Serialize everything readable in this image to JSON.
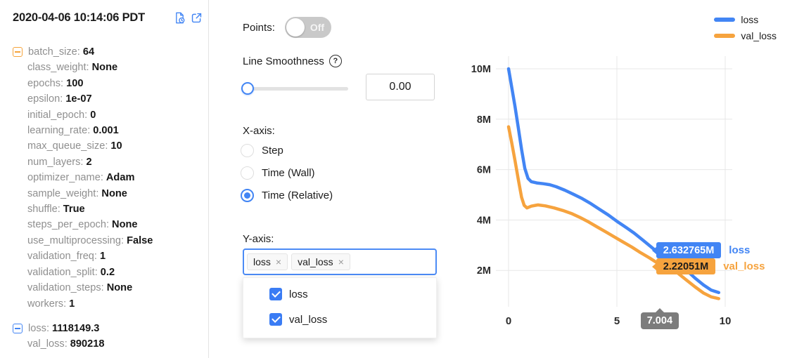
{
  "timestamp": "2020-04-06 10:14:06 PDT",
  "header_icons": [
    "file-history-icon",
    "open-external-icon"
  ],
  "params": {
    "groups": [
      {
        "accent": "#F5A33B",
        "items": [
          {
            "label": "batch_size",
            "value": "64"
          },
          {
            "label": "class_weight",
            "value": "None"
          },
          {
            "label": "epochs",
            "value": "100"
          },
          {
            "label": "epsilon",
            "value": "1e-07"
          },
          {
            "label": "initial_epoch",
            "value": "0"
          },
          {
            "label": "learning_rate",
            "value": "0.001"
          },
          {
            "label": "max_queue_size",
            "value": "10"
          },
          {
            "label": "num_layers",
            "value": "2"
          },
          {
            "label": "optimizer_name",
            "value": "Adam"
          },
          {
            "label": "sample_weight",
            "value": "None"
          },
          {
            "label": "shuffle",
            "value": "True"
          },
          {
            "label": "steps_per_epoch",
            "value": "None"
          },
          {
            "label": "use_multiprocessing",
            "value": "False"
          },
          {
            "label": "validation_freq",
            "value": "1"
          },
          {
            "label": "validation_split",
            "value": "0.2"
          },
          {
            "label": "validation_steps",
            "value": "None"
          },
          {
            "label": "workers",
            "value": "1"
          }
        ]
      },
      {
        "accent": "#4285F4",
        "items": [
          {
            "label": "loss",
            "value": "1118149.3"
          },
          {
            "label": "val_loss",
            "value": "890218"
          }
        ]
      }
    ]
  },
  "controls": {
    "points": {
      "label": "Points:",
      "state": "Off"
    },
    "smoothness": {
      "label": "Line Smoothness",
      "help_glyph": "?",
      "value": "0.00",
      "slider_position": 0
    },
    "xaxis": {
      "label": "X-axis:",
      "options": [
        {
          "label": "Step",
          "selected": false
        },
        {
          "label": "Time (Wall)",
          "selected": false
        },
        {
          "label": "Time (Relative)",
          "selected": true
        }
      ]
    },
    "yaxis": {
      "label": "Y-axis:",
      "tags": [
        "loss",
        "val_loss"
      ],
      "options": [
        {
          "label": "loss",
          "checked": true
        },
        {
          "label": "val_loss",
          "checked": true
        }
      ]
    }
  },
  "chart_data": {
    "type": "line",
    "title": "",
    "xlabel": "",
    "ylabel": "",
    "grid": true,
    "legend_position": "top-right",
    "y_unit": "M",
    "xlim": [
      -0.6,
      10.3
    ],
    "ylim_millions": [
      0.6,
      10.5
    ],
    "x_ticks": [
      {
        "v": 0,
        "label": "0"
      },
      {
        "v": 5,
        "label": "5"
      },
      {
        "v": 10,
        "label": "10"
      }
    ],
    "y_ticks": [
      {
        "v": 2,
        "label": "2M"
      },
      {
        "v": 4,
        "label": "4M"
      },
      {
        "v": 6,
        "label": "6M"
      },
      {
        "v": 8,
        "label": "8M"
      },
      {
        "v": 10,
        "label": "10M"
      }
    ],
    "cursor_x": 7.004,
    "cursor_label": "7.004",
    "series": [
      {
        "name": "loss",
        "color": "#4285F4",
        "cursor_value": 2.632765,
        "cursor_value_label": "2.632765M",
        "value_text_color": "#ffffff",
        "points": [
          [
            0,
            10.0
          ],
          [
            0.15,
            9.25
          ],
          [
            0.3,
            8.5
          ],
          [
            0.45,
            7.65
          ],
          [
            0.6,
            6.8
          ],
          [
            0.75,
            6.05
          ],
          [
            0.9,
            5.65
          ],
          [
            1.05,
            5.52
          ],
          [
            1.3,
            5.47
          ],
          [
            1.6,
            5.44
          ],
          [
            1.9,
            5.4
          ],
          [
            2.2,
            5.32
          ],
          [
            2.6,
            5.18
          ],
          [
            3.0,
            5.02
          ],
          [
            3.4,
            4.85
          ],
          [
            3.8,
            4.65
          ],
          [
            4.2,
            4.42
          ],
          [
            4.6,
            4.2
          ],
          [
            5.0,
            3.95
          ],
          [
            5.4,
            3.72
          ],
          [
            5.8,
            3.48
          ],
          [
            6.2,
            3.2
          ],
          [
            6.6,
            2.92
          ],
          [
            7.004,
            2.632765
          ],
          [
            7.4,
            2.45
          ],
          [
            7.8,
            2.28
          ],
          [
            8.2,
            2.02
          ],
          [
            8.6,
            1.7
          ],
          [
            9.0,
            1.42
          ],
          [
            9.35,
            1.22
          ],
          [
            9.7,
            1.12
          ]
        ]
      },
      {
        "name": "val_loss",
        "color": "#F6A33E",
        "cursor_value": 2.22051,
        "cursor_value_label": "2.22051M",
        "value_text_color": "#1c1c1c",
        "points": [
          [
            0,
            7.7
          ],
          [
            0.15,
            7.05
          ],
          [
            0.3,
            6.35
          ],
          [
            0.45,
            5.6
          ],
          [
            0.6,
            4.9
          ],
          [
            0.72,
            4.58
          ],
          [
            0.85,
            4.48
          ],
          [
            1.05,
            4.55
          ],
          [
            1.35,
            4.6
          ],
          [
            1.7,
            4.56
          ],
          [
            2.1,
            4.48
          ],
          [
            2.5,
            4.38
          ],
          [
            2.9,
            4.26
          ],
          [
            3.3,
            4.1
          ],
          [
            3.7,
            3.92
          ],
          [
            4.1,
            3.72
          ],
          [
            4.5,
            3.52
          ],
          [
            4.9,
            3.32
          ],
          [
            5.3,
            3.12
          ],
          [
            5.7,
            2.92
          ],
          [
            6.1,
            2.7
          ],
          [
            6.5,
            2.5
          ],
          [
            7.004,
            2.22051
          ],
          [
            7.4,
            2.08
          ],
          [
            7.8,
            1.9
          ],
          [
            8.2,
            1.62
          ],
          [
            8.6,
            1.35
          ],
          [
            9.0,
            1.1
          ],
          [
            9.35,
            0.95
          ],
          [
            9.7,
            0.88
          ]
        ]
      }
    ]
  }
}
